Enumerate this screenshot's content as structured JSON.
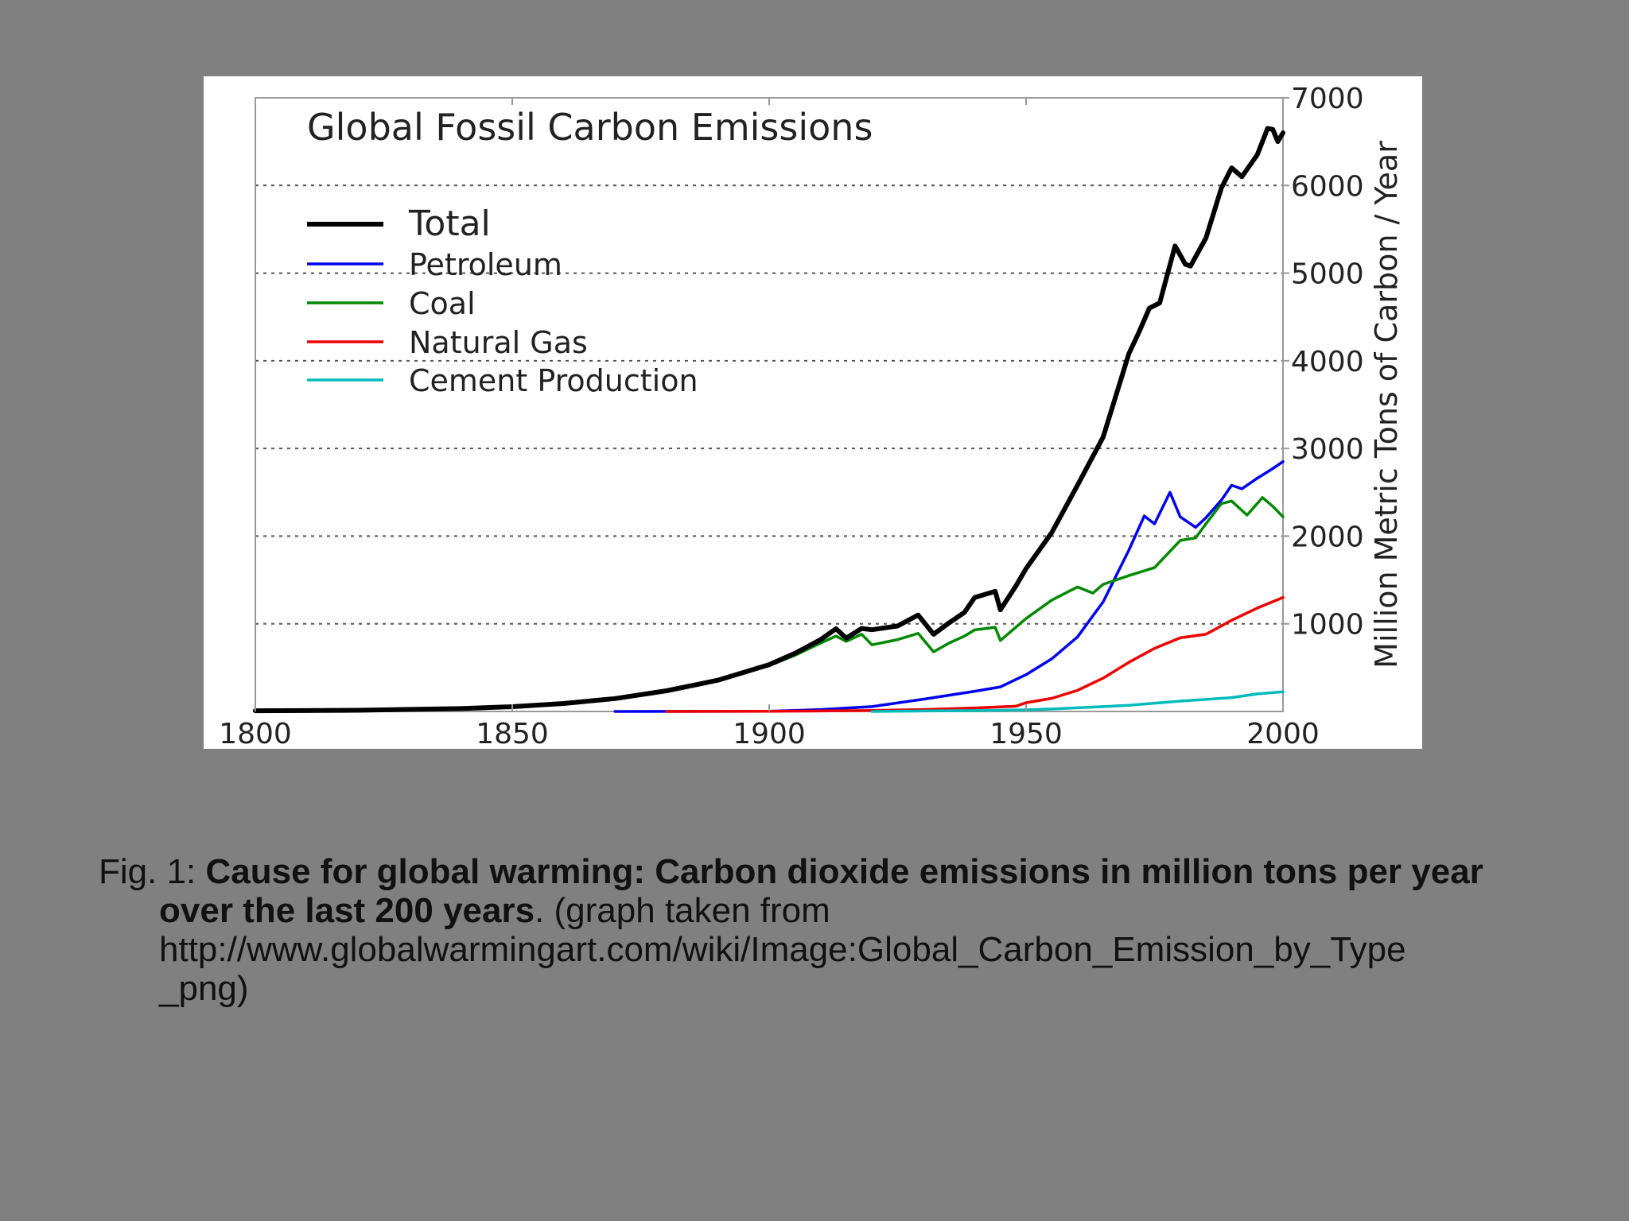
{
  "colors": {
    "background": "#808080",
    "panel": "#ffffff",
    "total": "#000000",
    "petroleum": "#0000ee",
    "coal": "#008800",
    "natural_gas": "#ee0000",
    "cement": "#00bbbb",
    "grid": "#555555"
  },
  "chart_data": {
    "type": "line",
    "title": "Global Fossil Carbon Emissions",
    "xlabel": "",
    "ylabel": "Million Metric Tons of Carbon / Year",
    "xlim": [
      1800,
      2000
    ],
    "ylim": [
      0,
      7000
    ],
    "x_ticks": [
      "1800",
      "1850",
      "1900",
      "1950",
      "2000"
    ],
    "y_ticks": [
      "1000",
      "2000",
      "3000",
      "4000",
      "5000",
      "6000",
      "7000"
    ],
    "y_axis_side": "right",
    "grid": "horizontal dotted",
    "legend_position": "top-left",
    "series": [
      {
        "name": "Total",
        "color": "#000000",
        "points": [
          [
            1800,
            8
          ],
          [
            1820,
            14
          ],
          [
            1840,
            33
          ],
          [
            1850,
            54
          ],
          [
            1860,
            91
          ],
          [
            1870,
            147
          ],
          [
            1880,
            236
          ],
          [
            1890,
            356
          ],
          [
            1900,
            534
          ],
          [
            1905,
            663
          ],
          [
            1910,
            819
          ],
          [
            1913,
            943
          ],
          [
            1915,
            836
          ],
          [
            1918,
            947
          ],
          [
            1920,
            932
          ],
          [
            1925,
            975
          ],
          [
            1929,
            1100
          ],
          [
            1932,
            880
          ],
          [
            1935,
            1010
          ],
          [
            1938,
            1130
          ],
          [
            1940,
            1300
          ],
          [
            1944,
            1370
          ],
          [
            1945,
            1160
          ],
          [
            1948,
            1430
          ],
          [
            1950,
            1630
          ],
          [
            1955,
            2040
          ],
          [
            1960,
            2580
          ],
          [
            1965,
            3130
          ],
          [
            1970,
            4080
          ],
          [
            1972,
            4330
          ],
          [
            1974,
            4600
          ],
          [
            1976,
            4660
          ],
          [
            1979,
            5310
          ],
          [
            1981,
            5100
          ],
          [
            1982,
            5080
          ],
          [
            1985,
            5400
          ],
          [
            1988,
            5970
          ],
          [
            1990,
            6200
          ],
          [
            1992,
            6100
          ],
          [
            1995,
            6350
          ],
          [
            1997,
            6650
          ],
          [
            1998,
            6640
          ],
          [
            1999,
            6500
          ],
          [
            2000,
            6600
          ]
        ]
      },
      {
        "name": "Petroleum",
        "color": "#0000ee",
        "points": [
          [
            1870,
            0
          ],
          [
            1900,
            3
          ],
          [
            1910,
            22
          ],
          [
            1920,
            55
          ],
          [
            1930,
            140
          ],
          [
            1940,
            230
          ],
          [
            1945,
            280
          ],
          [
            1950,
            420
          ],
          [
            1955,
            600
          ],
          [
            1960,
            850
          ],
          [
            1965,
            1250
          ],
          [
            1970,
            1840
          ],
          [
            1973,
            2230
          ],
          [
            1975,
            2140
          ],
          [
            1978,
            2500
          ],
          [
            1980,
            2220
          ],
          [
            1983,
            2100
          ],
          [
            1985,
            2210
          ],
          [
            1988,
            2410
          ],
          [
            1990,
            2580
          ],
          [
            1992,
            2540
          ],
          [
            1995,
            2660
          ],
          [
            1998,
            2770
          ],
          [
            2000,
            2850
          ]
        ]
      },
      {
        "name": "Coal",
        "color": "#008800",
        "points": [
          [
            1800,
            8
          ],
          [
            1820,
            14
          ],
          [
            1840,
            33
          ],
          [
            1850,
            54
          ],
          [
            1860,
            91
          ],
          [
            1870,
            146
          ],
          [
            1880,
            234
          ],
          [
            1890,
            352
          ],
          [
            1900,
            522
          ],
          [
            1905,
            640
          ],
          [
            1910,
            780
          ],
          [
            1913,
            860
          ],
          [
            1915,
            800
          ],
          [
            1918,
            880
          ],
          [
            1920,
            760
          ],
          [
            1925,
            820
          ],
          [
            1929,
            890
          ],
          [
            1932,
            680
          ],
          [
            1935,
            780
          ],
          [
            1938,
            860
          ],
          [
            1940,
            930
          ],
          [
            1944,
            960
          ],
          [
            1945,
            810
          ],
          [
            1948,
            960
          ],
          [
            1950,
            1060
          ],
          [
            1955,
            1270
          ],
          [
            1960,
            1420
          ],
          [
            1963,
            1350
          ],
          [
            1965,
            1450
          ],
          [
            1970,
            1550
          ],
          [
            1975,
            1640
          ],
          [
            1980,
            1950
          ],
          [
            1983,
            1980
          ],
          [
            1985,
            2140
          ],
          [
            1988,
            2370
          ],
          [
            1990,
            2400
          ],
          [
            1993,
            2240
          ],
          [
            1996,
            2440
          ],
          [
            1998,
            2340
          ],
          [
            2000,
            2220
          ]
        ]
      },
      {
        "name": "Natural Gas",
        "color": "#ee0000",
        "points": [
          [
            1880,
            0
          ],
          [
            1900,
            2
          ],
          [
            1910,
            5
          ],
          [
            1920,
            12
          ],
          [
            1930,
            22
          ],
          [
            1940,
            40
          ],
          [
            1948,
            60
          ],
          [
            1950,
            100
          ],
          [
            1955,
            150
          ],
          [
            1960,
            240
          ],
          [
            1965,
            380
          ],
          [
            1970,
            560
          ],
          [
            1975,
            720
          ],
          [
            1980,
            840
          ],
          [
            1985,
            880
          ],
          [
            1990,
            1040
          ],
          [
            1995,
            1180
          ],
          [
            2000,
            1300
          ]
        ]
      },
      {
        "name": "Cement Production",
        "color": "#00bbbb",
        "points": [
          [
            1920,
            0
          ],
          [
            1930,
            5
          ],
          [
            1940,
            10
          ],
          [
            1950,
            18
          ],
          [
            1955,
            28
          ],
          [
            1960,
            42
          ],
          [
            1970,
            70
          ],
          [
            1980,
            118
          ],
          [
            1990,
            158
          ],
          [
            1995,
            200
          ],
          [
            2000,
            225
          ]
        ]
      }
    ]
  },
  "caption": {
    "prefix": "Fig. 1: ",
    "bold_line1": "Cause for global warming: Carbon dioxide emissions in million tons per year",
    "bold_line2": "over the last 200 years",
    "after_bold": ". (graph taken from",
    "url_line1": "http://www.globalwarmingart.com/wiki/Image:Global_Carbon_Emission_by_Type",
    "url_line2": "_png)"
  }
}
